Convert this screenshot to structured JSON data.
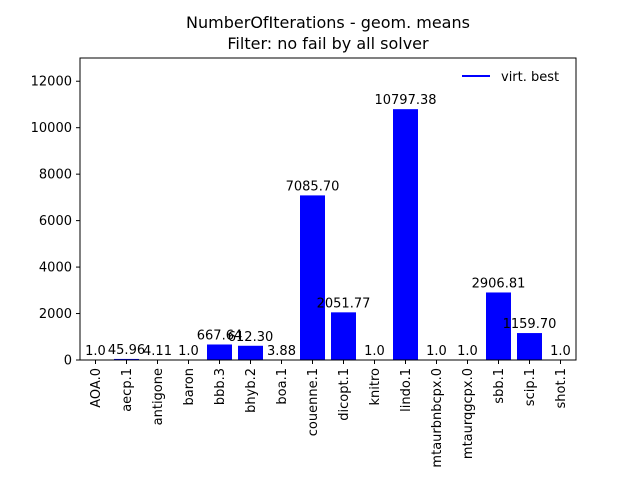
{
  "chart_data": {
    "type": "bar",
    "title": "NumberOfIterations - geom. means",
    "subtitle": "Filter: no fail by all solver",
    "xlabel": "",
    "ylabel": "",
    "ylim": [
      0,
      13000
    ],
    "yticks": [
      0,
      2000,
      4000,
      6000,
      8000,
      10000,
      12000
    ],
    "categories": [
      "AOA.0",
      "aecp.1",
      "antigone",
      "baron",
      "bbb.3",
      "bhyb.2",
      "boa.1",
      "couenne.1",
      "dicopt.1",
      "knitro",
      "lindo.1",
      "mtaurbnbcpx.0",
      "mtaurqgcpx.0",
      "sbb.1",
      "scip.1",
      "shot.1"
    ],
    "values": [
      1.0,
      45.96,
      4.11,
      1.0,
      667.64,
      612.3,
      3.88,
      7085.7,
      2051.77,
      1.0,
      10797.38,
      1.0,
      1.0,
      2906.81,
      1159.7,
      1.0
    ],
    "value_labels": [
      "1.0",
      "45.96",
      "4.11",
      "1.0",
      "667.64",
      "612.30",
      "3.88",
      "7085.70",
      "2051.77",
      "1.0",
      "10797.38",
      "1.0",
      "1.0",
      "2906.81",
      "1159.70",
      "1.0"
    ],
    "series": [
      {
        "name": "virt. best",
        "color": "#0000ff"
      }
    ],
    "legend": {
      "position": "top-right",
      "label": "virt. best"
    },
    "grid": false,
    "bar_color": "#0000ff"
  }
}
